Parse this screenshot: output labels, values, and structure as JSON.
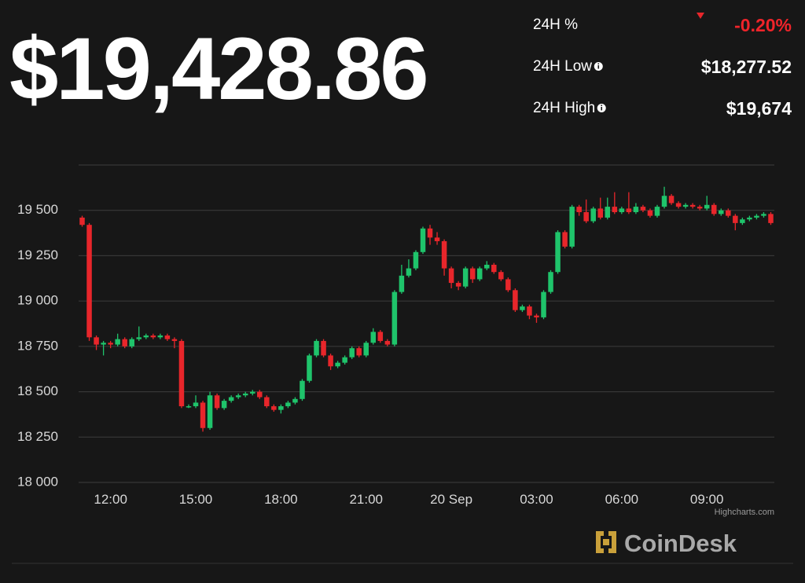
{
  "header": {
    "price": "$19,428.86",
    "stats": [
      {
        "label": "24H %",
        "value": "-0.20%"
      },
      {
        "label": "24H Low",
        "value": "$18,277.52"
      },
      {
        "label": "24H High",
        "value": "$19,674"
      }
    ],
    "credit": "Highcharts.com",
    "brand": "CoinDesk"
  },
  "chart_data": {
    "type": "candlestick",
    "categories": [
      null,
      null,
      null,
      null,
      "12:00",
      null,
      null,
      null,
      null,
      null,
      null,
      null,
      null,
      null,
      null,
      null,
      "15:00",
      null,
      null,
      null,
      null,
      null,
      null,
      null,
      null,
      null,
      null,
      null,
      "18:00",
      null,
      null,
      null,
      null,
      null,
      null,
      null,
      null,
      null,
      null,
      null,
      "21:00",
      null,
      null,
      null,
      null,
      null,
      null,
      null,
      null,
      null,
      null,
      null,
      "20 Sep",
      null,
      null,
      null,
      null,
      null,
      null,
      null,
      null,
      null,
      null,
      null,
      "03:00",
      null,
      null,
      null,
      null,
      null,
      null,
      null,
      null,
      null,
      null,
      null,
      "06:00",
      null,
      null,
      null,
      null,
      null,
      null,
      null,
      null,
      null,
      null,
      null,
      "09:00",
      null,
      null,
      null,
      null,
      null,
      null,
      null,
      null,
      null
    ],
    "open": [
      19460,
      19420,
      18800,
      18760,
      18770,
      18760,
      18790,
      18750,
      18790,
      18800,
      18810,
      18800,
      18810,
      18790,
      18780,
      18420,
      18420,
      18440,
      18300,
      18480,
      18410,
      18450,
      18470,
      18480,
      18490,
      18500,
      18470,
      18420,
      18400,
      18420,
      18440,
      18460,
      18560,
      18700,
      18780,
      18700,
      18640,
      18660,
      18690,
      18740,
      18700,
      18770,
      18830,
      18780,
      18760,
      19050,
      19140,
      19180,
      19270,
      19400,
      19350,
      19330,
      19180,
      19100,
      19080,
      19180,
      19120,
      19180,
      19200,
      19160,
      19120,
      19060,
      18950,
      18970,
      18920,
      18910,
      19050,
      19160,
      19380,
      19300,
      19520,
      19490,
      19440,
      19510,
      19460,
      19520,
      19490,
      19510,
      19490,
      19520,
      19500,
      19470,
      19520,
      19580,
      19540,
      19520,
      19530,
      19520,
      19510,
      19530,
      19480,
      19500,
      19470,
      19430,
      19450,
      19460,
      19470,
      19480
    ],
    "high": [
      19470,
      19430,
      18810,
      18780,
      18780,
      18820,
      18800,
      18800,
      18860,
      18820,
      18820,
      18820,
      18820,
      18800,
      18790,
      18430,
      18480,
      18450,
      18500,
      18490,
      18460,
      18480,
      18490,
      18500,
      18510,
      18510,
      18480,
      18430,
      18430,
      18450,
      18470,
      18570,
      18710,
      18790,
      18790,
      18710,
      18670,
      18700,
      18750,
      18750,
      18780,
      18850,
      18840,
      18790,
      19060,
      19200,
      19230,
      19280,
      19410,
      19420,
      19380,
      19340,
      19190,
      19110,
      19190,
      19190,
      19190,
      19220,
      19210,
      19170,
      19130,
      19070,
      18980,
      18980,
      18930,
      19060,
      19170,
      19390,
      19390,
      19530,
      19530,
      19560,
      19520,
      19570,
      19570,
      19600,
      19520,
      19600,
      19540,
      19530,
      19510,
      19530,
      19630,
      19590,
      19550,
      19540,
      19540,
      19530,
      19580,
      19540,
      19510,
      19510,
      19480,
      19460,
      19470,
      19480,
      19490,
      19490
    ],
    "low": [
      19410,
      18780,
      18730,
      18700,
      18740,
      18750,
      18740,
      18740,
      18780,
      18790,
      18790,
      18790,
      18780,
      18740,
      18410,
      18410,
      18410,
      18280,
      18290,
      18400,
      18400,
      18440,
      18460,
      18470,
      18480,
      18460,
      18410,
      18390,
      18380,
      18410,
      18430,
      18450,
      18550,
      18690,
      18690,
      18620,
      18630,
      18650,
      18680,
      18690,
      18690,
      18760,
      18770,
      18750,
      18750,
      19040,
      19130,
      19170,
      19260,
      19310,
      19310,
      19140,
      19070,
      19060,
      19070,
      19100,
      19110,
      19170,
      19150,
      19110,
      19050,
      18940,
      18940,
      18900,
      18880,
      18900,
      19040,
      19150,
      19290,
      19290,
      19470,
      19430,
      19430,
      19450,
      19450,
      19480,
      19480,
      19480,
      19480,
      19490,
      19460,
      19460,
      19510,
      19530,
      19510,
      19510,
      19510,
      19500,
      19500,
      19470,
      19470,
      19460,
      19390,
      19420,
      19440,
      19450,
      19460,
      19420
    ],
    "close": [
      19420,
      18800,
      18760,
      18770,
      18760,
      18790,
      18750,
      18790,
      18800,
      18810,
      18800,
      18810,
      18790,
      18780,
      18420,
      18420,
      18440,
      18300,
      18480,
      18410,
      18450,
      18470,
      18480,
      18490,
      18500,
      18470,
      18420,
      18400,
      18420,
      18440,
      18460,
      18560,
      18700,
      18780,
      18700,
      18640,
      18660,
      18690,
      18740,
      18700,
      18770,
      18830,
      18780,
      18760,
      19050,
      19140,
      19180,
      19270,
      19400,
      19350,
      19330,
      19180,
      19100,
      19080,
      19180,
      19120,
      19180,
      19200,
      19160,
      19120,
      19060,
      18950,
      18970,
      18920,
      18910,
      19050,
      19160,
      19380,
      19300,
      19520,
      19490,
      19440,
      19510,
      19460,
      19520,
      19490,
      19510,
      19490,
      19520,
      19500,
      19470,
      19520,
      19580,
      19540,
      19520,
      19530,
      19520,
      19510,
      19530,
      19480,
      19500,
      19470,
      19430,
      19450,
      19460,
      19470,
      19480,
      19430
    ],
    "up_color": "#1fc46b",
    "down_color": "#e8262b",
    "ylim": [
      18000,
      19750
    ],
    "yticks": [
      {
        "value": 18000,
        "label": "18 000"
      },
      {
        "value": 18250,
        "label": "18 250"
      },
      {
        "value": 18500,
        "label": "18 500"
      },
      {
        "value": 18750,
        "label": "18 750"
      },
      {
        "value": 19000,
        "label": "19 000"
      },
      {
        "value": 19250,
        "label": "19 250"
      },
      {
        "value": 19500,
        "label": "19 500"
      }
    ],
    "grid": true
  }
}
